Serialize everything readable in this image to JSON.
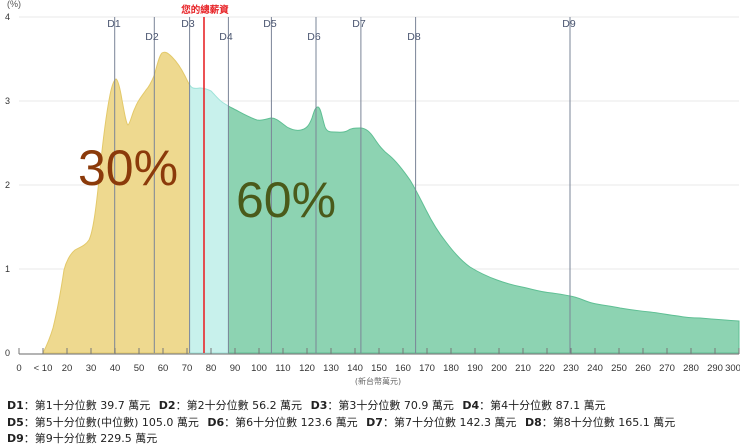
{
  "chart_data": {
    "type": "area",
    "title": "",
    "ylabel": "(%)",
    "xlabel": "(新台幣萬元)",
    "ylim": [
      0,
      4
    ],
    "xlim": [
      0,
      300
    ],
    "y_ticks": [
      "0",
      "1",
      "2",
      "3",
      "4"
    ],
    "x_ticks": [
      "0",
      "< 10",
      "20",
      "30",
      "40",
      "50",
      "60",
      "70",
      "80",
      "90",
      "100",
      "110",
      "120",
      "130",
      "140",
      "150",
      "160",
      "170",
      "180",
      "190",
      "200",
      "210",
      "220",
      "230",
      "240",
      "250",
      "260",
      "270",
      "280",
      "290",
      "300"
    ],
    "grid": true,
    "series": [
      {
        "name": "salary-distribution",
        "x": [
          10,
          15,
          20,
          25,
          30,
          35,
          40,
          45,
          50,
          55,
          60,
          65,
          70,
          75,
          80,
          85,
          90,
          100,
          110,
          120,
          123.6,
          130,
          140,
          150,
          160,
          170,
          180,
          190,
          200,
          210,
          220,
          230,
          240,
          250,
          260,
          270,
          280,
          290,
          300
        ],
        "values": [
          0.0,
          0.5,
          1.25,
          1.4,
          1.5,
          2.6,
          3.25,
          2.7,
          3.0,
          3.4,
          3.55,
          3.4,
          3.2,
          3.15,
          3.15,
          3.05,
          2.9,
          2.78,
          2.65,
          2.75,
          2.95,
          2.65,
          2.65,
          2.3,
          1.8,
          1.2,
          0.9,
          0.78,
          0.7,
          0.62,
          0.55,
          0.5,
          0.45,
          0.38,
          0.35,
          0.32,
          0.3,
          0.28,
          0.25
        ]
      }
    ],
    "deciles": [
      {
        "label": "D1",
        "value": 39.7
      },
      {
        "label": "D2",
        "value": 56.2
      },
      {
        "label": "D3",
        "value": 70.9
      },
      {
        "label": "D4",
        "value": 87.1
      },
      {
        "label": "D5",
        "value": 105.0
      },
      {
        "label": "D6",
        "value": 123.6
      },
      {
        "label": "D7",
        "value": 142.3
      },
      {
        "label": "D8",
        "value": 165.1
      },
      {
        "label": "D9",
        "value": 229.5
      }
    ],
    "marker": {
      "label": "您的總薪資",
      "value": 77,
      "color": "#e8262a"
    },
    "regions": [
      {
        "label": "30%",
        "from": 0,
        "to": 70.9,
        "color": "#eed98f",
        "text_color": "#8b3a0a"
      },
      {
        "from": 70.9,
        "to": 87.1,
        "color": "#c5f0eb"
      },
      {
        "label": "60%",
        "from": 87.1,
        "to": 300,
        "color": "#8dd3b2",
        "text_color": "#4a5a1a"
      }
    ]
  },
  "annotations": {
    "left_pct": "30%",
    "right_pct": "60%",
    "marker_label": "您的總薪資",
    "y_unit": "(%)",
    "x_unit": "(新台幣萬元)"
  },
  "legend": [
    {
      "code": "D1",
      "sep": "：",
      "text": "第1十分位數 39.7 萬元"
    },
    {
      "code": "D2",
      "sep": "：",
      "text": "第2十分位數 56.2 萬元"
    },
    {
      "code": "D3",
      "sep": "：",
      "text": "第3十分位數 70.9 萬元"
    },
    {
      "code": "D4",
      "sep": "：",
      "text": "第4十分位數 87.1 萬元"
    },
    {
      "code": "D5",
      "sep": "：",
      "text": "第5十分位數(中位數) 105.0 萬元"
    },
    {
      "code": "D6",
      "sep": "：",
      "text": "第6十分位數 123.6 萬元"
    },
    {
      "code": "D7",
      "sep": "：",
      "text": "第7十分位數 142.3 萬元"
    },
    {
      "code": "D8",
      "sep": "：",
      "text": "第8十分位數 165.1 萬元"
    },
    {
      "code": "D9",
      "sep": "：",
      "text": "第9十分位數 229.5 萬元"
    }
  ]
}
